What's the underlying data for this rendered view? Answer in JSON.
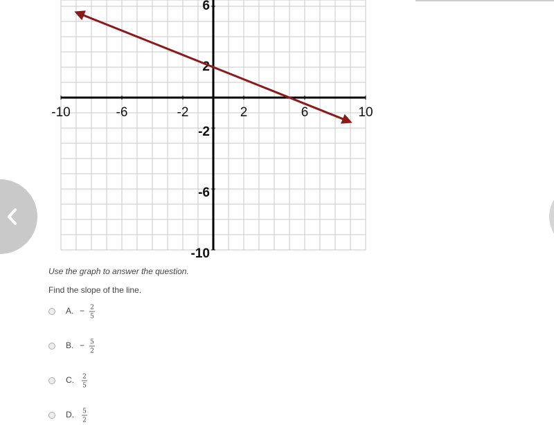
{
  "graph": {
    "xlim": [
      -10,
      10
    ],
    "ylim": [
      -10,
      6
    ],
    "xticks": [
      -10,
      -6,
      -2,
      2,
      6,
      10
    ],
    "yticks": [
      6,
      2,
      -2,
      -6,
      -10
    ],
    "line": {
      "x": [
        -9,
        9
      ],
      "y": [
        5.6,
        -1.6
      ],
      "color": "#8b1a1a"
    }
  },
  "instruction": "Use the graph to answer the question.",
  "question": "Find the slope of the line.",
  "options": [
    {
      "label": "A.",
      "sign": "−",
      "numerator": "2",
      "denominator": "5"
    },
    {
      "label": "B.",
      "sign": "−",
      "numerator": "5",
      "denominator": "2"
    },
    {
      "label": "C.",
      "numerator": "2",
      "denominator": "5"
    },
    {
      "label": "D.",
      "numerator": "5",
      "denominator": "2"
    }
  ]
}
